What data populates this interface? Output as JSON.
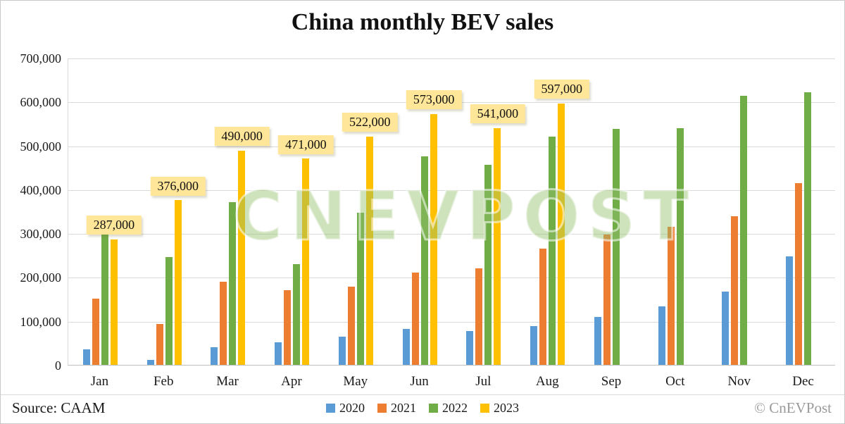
{
  "watermark": "CNEVPOST",
  "footer": {
    "source": "Source: CAAM",
    "credit": "© CnEVPost"
  },
  "chart_data": {
    "type": "bar",
    "title": "China monthly BEV sales",
    "categories": [
      "Jan",
      "Feb",
      "Mar",
      "Apr",
      "May",
      "Jun",
      "Jul",
      "Aug",
      "Sep",
      "Oct",
      "Nov",
      "Dec"
    ],
    "series": [
      {
        "name": "2020",
        "color": "#5B9BD5",
        "values": [
          35000,
          11000,
          40000,
          52000,
          64000,
          82000,
          78000,
          88000,
          110000,
          133000,
          167000,
          248000
        ]
      },
      {
        "name": "2021",
        "color": "#ED7D31",
        "values": [
          151000,
          93000,
          190000,
          171000,
          179000,
          211000,
          220000,
          265000,
          297000,
          316000,
          340000,
          415000
        ]
      },
      {
        "name": "2022",
        "color": "#70AD47",
        "values": [
          302000,
          246000,
          372000,
          230000,
          348000,
          476000,
          457000,
          522000,
          539000,
          540000,
          614000,
          623000
        ]
      },
      {
        "name": "2023",
        "color": "#FFC000",
        "values": [
          287000,
          376000,
          490000,
          471000,
          522000,
          573000,
          541000,
          597000,
          null,
          null,
          null,
          null
        ]
      }
    ],
    "data_labels": {
      "series_index": 3,
      "values": [
        "287,000",
        "376,000",
        "490,000",
        "471,000",
        "522,000",
        "573,000",
        "541,000",
        "597,000",
        null,
        null,
        null,
        null
      ]
    },
    "ylim": [
      0,
      700000
    ],
    "ytick_step": 100000,
    "yticks": [
      "0",
      "100,000",
      "200,000",
      "300,000",
      "400,000",
      "500,000",
      "600,000",
      "700,000"
    ],
    "grid": true,
    "legend_position": "bottom",
    "xlabel": "",
    "ylabel": ""
  }
}
